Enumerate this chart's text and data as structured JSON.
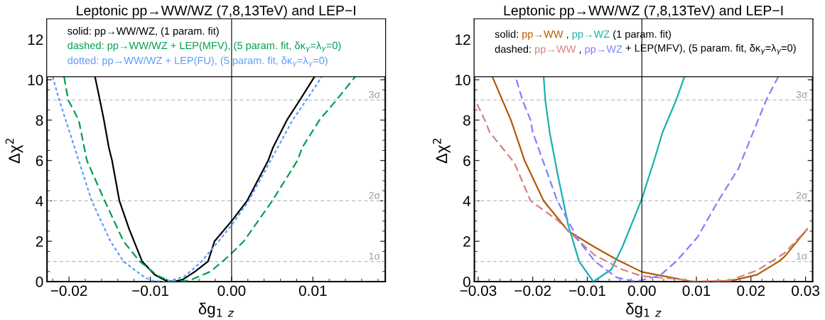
{
  "chart_data": [
    {
      "type": "line",
      "title": "Leptonic pp→WW/WZ (7,8,13TeV) and LEP−I",
      "xlabel": "δg$_{1}$ $_{z}$",
      "ylabel": "Δχ$^{2}$",
      "xlim": [
        -0.0227,
        0.0189
      ],
      "ylim": [
        0,
        13
      ],
      "bands": [
        {
          "axis": "y",
          "from": 10.15,
          "to": 13,
          "label": null,
          "color": "#ffffff"
        }
      ],
      "xticks": [
        {
          "value": -0.02,
          "label": "−0.02"
        },
        {
          "value": -0.01,
          "label": "−0.01"
        },
        {
          "value": 0,
          "label": "0.00"
        },
        {
          "value": 0.01,
          "label": "0.01"
        }
      ],
      "yticks": [
        0,
        2,
        4,
        6,
        8,
        10,
        12
      ],
      "grid": false,
      "annotations": [
        "solid: pp→WW/WZ, (1 param. fit)",
        "dashed: pp→WW/WZ + LEP(MFV), (5 param. fit, δκ$_{γ}$=λ$_{γ}$=0)",
        "dotted: pp→WW/WZ + LEP(FU), (5 param. fit, δκ$_{γ}$=λ$_{γ}$=0)"
      ],
      "ref_lines": [
        {
          "axis": "y",
          "value": 1,
          "label": "1σ",
          "color": "#bbbbbb",
          "line_style": "dashed"
        },
        {
          "axis": "y",
          "value": 4,
          "label": "2σ",
          "color": "#bbbbbb",
          "line_style": "dashed"
        },
        {
          "axis": "y",
          "value": 9,
          "label": "3σ",
          "color": "#bbbbbb",
          "line_style": "dashed"
        },
        {
          "axis": "x",
          "value": 0,
          "label": null,
          "color": "#000000",
          "line_style": "solid"
        },
        {
          "axis": "y",
          "value": 10.15,
          "label": null,
          "color": "#000000",
          "line_style": "solid"
        }
      ],
      "series": [
        {
          "color": "#000000",
          "line_style": "solid",
          "x": [
            -0.0168,
            -0.0162,
            -0.0157,
            -0.0151,
            -0.0147,
            -0.0138,
            -0.0126,
            -0.011,
            -0.0095,
            -0.0082,
            -0.0071,
            -0.006,
            -0.0045,
            -0.0029,
            -0.0021,
            0,
            0.0019,
            0.0045,
            0.0051,
            0.0068,
            0.0084,
            0.0102
          ],
          "values": [
            10.15,
            9,
            8,
            6.65,
            6,
            4,
            2.6,
            1,
            0.35,
            0.07,
            0,
            0.1,
            0.5,
            1,
            2,
            3.0,
            4,
            6,
            6.65,
            8,
            9,
            10.15
          ]
        },
        {
          "color": "#009e50",
          "line_style": "dashed",
          "x": [
            -0.0206,
            -0.0201,
            -0.0188,
            -0.0178,
            -0.0156,
            -0.0133,
            -0.0113,
            -0.0091,
            -0.0075,
            -0.0052,
            -0.0026,
            -0.0011,
            0,
            0.0015,
            0.005,
            0.0081,
            0.0087,
            0.0108,
            0.0129,
            0.0152
          ],
          "values": [
            10.15,
            9,
            8,
            6,
            4,
            2,
            1,
            0.3,
            0,
            0.05,
            0.5,
            1,
            1.4,
            2,
            4,
            6,
            6.65,
            8,
            9,
            10.15
          ]
        },
        {
          "color": "#5c9cff",
          "line_style": "dotted",
          "x": [
            -0.022,
            -0.0212,
            -0.0204,
            -0.0172,
            -0.0149,
            -0.0133,
            -0.011,
            -0.0099,
            -0.0085,
            -0.0075,
            -0.0058,
            -0.0037,
            -0.0016,
            0,
            0.0021,
            0.0075,
            0.0092,
            0.0111
          ],
          "values": [
            10.15,
            9,
            8,
            4,
            2,
            1,
            0.3,
            0.05,
            0,
            0.05,
            0.25,
            1,
            2,
            2.8,
            4,
            8,
            9,
            10.15
          ]
        }
      ]
    },
    {
      "type": "line",
      "title": "Leptonic pp→WW/WZ (7,8,13TeV) and LEP−I",
      "xlabel": "δg$_{1}$ $_{z}$",
      "ylabel": "Δχ$^{2}$",
      "xlim": [
        -0.0307,
        0.0313
      ],
      "ylim": [
        0,
        13
      ],
      "bands": [
        {
          "axis": "y",
          "from": 10.15,
          "to": 13,
          "label": null,
          "color": "#ffffff"
        }
      ],
      "xticks": [
        {
          "value": -0.03,
          "label": "−0.03"
        },
        {
          "value": -0.02,
          "label": "−0.02"
        },
        {
          "value": -0.01,
          "label": "−0.01"
        },
        {
          "value": 0,
          "label": "0.00"
        },
        {
          "value": 0.01,
          "label": "0.01"
        },
        {
          "value": 0.02,
          "label": "0.02"
        },
        {
          "value": 0.03,
          "label": "0.03"
        }
      ],
      "yticks": [
        0,
        2,
        4,
        6,
        8,
        10,
        12
      ],
      "grid": false,
      "annotations": [
        "solid:",
        ",",
        "(1 param. fit)",
        "dashed:",
        ",",
        "+ LEP(MFV), (5 param. fit, δκ$_{γ}$=λ$_{γ}$=0)"
      ],
      "ref_lines": [
        {
          "axis": "y",
          "value": 1,
          "label": "1σ",
          "color": "#bbbbbb",
          "line_style": "dashed"
        },
        {
          "axis": "y",
          "value": 4,
          "label": "2σ",
          "color": "#bbbbbb",
          "line_style": "dashed"
        },
        {
          "axis": "y",
          "value": 9,
          "label": "3σ",
          "color": "#bbbbbb",
          "line_style": "dashed"
        },
        {
          "axis": "x",
          "value": 0,
          "label": null,
          "color": "#000000",
          "line_style": "solid"
        },
        {
          "axis": "y",
          "value": 10.15,
          "label": null,
          "color": "#000000",
          "line_style": "solid"
        }
      ],
      "series": [
        {
          "name": "pp→WW",
          "color": "#b35900",
          "line_style": "solid",
          "x": [
            -0.0274,
            -0.024,
            -0.0215,
            -0.018,
            -0.0135,
            -0.0086,
            -0.0046,
            0,
            0.0093,
            0.0162,
            0.0211,
            0.0251,
            0.0261,
            0.0303
          ],
          "values": [
            10.15,
            8,
            6,
            4,
            2.5,
            1.7,
            1.09,
            0.48,
            0,
            0.03,
            0.34,
            1,
            1.22,
            2.6
          ]
        },
        {
          "name": "pp→WZ",
          "color": "#1aafaf",
          "line_style": "solid",
          "x": [
            -0.018,
            -0.0177,
            -0.0169,
            -0.0155,
            -0.0135,
            -0.0115,
            -0.0089,
            -0.0056,
            -0.0036,
            0,
            0.0023,
            0.0038,
            0.0063,
            0.0078
          ],
          "values": [
            10.15,
            9,
            7.4,
            5.4,
            2.8,
            1.0,
            0,
            0.6,
            1.7,
            4.1,
            6.05,
            7.4,
            9,
            10.15
          ]
        },
        {
          "name": "pp→WW",
          "color": "#d98080",
          "line_style": "dashed",
          "x": [
            -0.0302,
            -0.0288,
            -0.0279,
            -0.0234,
            -0.0204,
            -0.0155,
            -0.0115,
            -0.0086,
            -0.0036,
            0,
            0.0063,
            0.01,
            0.0162,
            0.0211,
            0.0261,
            0.0303
          ],
          "values": [
            8.8,
            8,
            7.4,
            5.9,
            4,
            3.05,
            2,
            1.3,
            0.6,
            0.27,
            0.13,
            0,
            0.07,
            0.55,
            1.4,
            2.6
          ]
        },
        {
          "name": "pp→WZ",
          "color": "#8080ff",
          "line_style": "dashed",
          "x": [
            -0.023,
            -0.0219,
            -0.0204,
            -0.02,
            -0.0155,
            -0.0135,
            -0.0115,
            -0.0086,
            -0.0046,
            -0.0011,
            0.0033,
            0.0063,
            0.0102,
            0.014,
            0.0177,
            0.0204,
            0.0228,
            0.025
          ],
          "values": [
            10.0,
            9,
            8,
            7.4,
            4,
            3,
            2,
            1,
            0.2,
            0,
            0.3,
            1.0,
            2.2,
            4,
            5.6,
            7.4,
            9,
            10.15
          ]
        }
      ]
    }
  ]
}
